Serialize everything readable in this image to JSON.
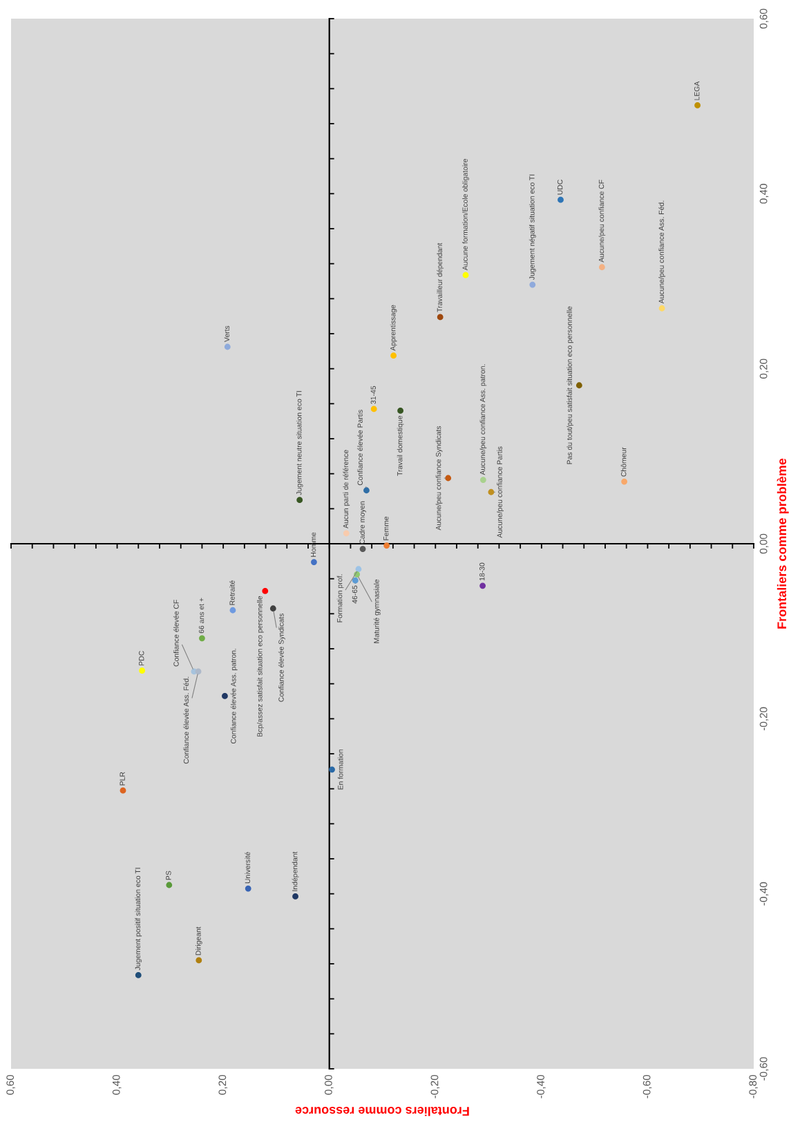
{
  "chart_data": {
    "type": "scatter",
    "xlabel": "Frontaliers comme ressource",
    "ylabel": "Frontaliers comme problème",
    "marker": "circle",
    "xlim": [
      0.6,
      -0.8
    ],
    "ylim": [
      -0.6,
      0.6
    ],
    "xticks": [
      {
        "value": 0.6,
        "label": "0,60"
      },
      {
        "value": 0.56,
        "label": null
      },
      {
        "value": 0.52,
        "label": null
      },
      {
        "value": 0.48,
        "label": null
      },
      {
        "value": 0.44,
        "label": null
      },
      {
        "value": 0.4,
        "label": "0,40"
      },
      {
        "value": 0.36,
        "label": null
      },
      {
        "value": 0.32,
        "label": null
      },
      {
        "value": 0.28,
        "label": null
      },
      {
        "value": 0.24,
        "label": null
      },
      {
        "value": 0.2,
        "label": "0,20"
      },
      {
        "value": 0.16,
        "label": null
      },
      {
        "value": 0.12,
        "label": null
      },
      {
        "value": 0.08,
        "label": null
      },
      {
        "value": 0.04,
        "label": null
      },
      {
        "value": 0,
        "label": "0,00"
      },
      {
        "value": -0.04,
        "label": null
      },
      {
        "value": -0.08,
        "label": null
      },
      {
        "value": -0.12,
        "label": null
      },
      {
        "value": -0.16,
        "label": null
      },
      {
        "value": -0.2,
        "label": "-0,20"
      },
      {
        "value": -0.24,
        "label": null
      },
      {
        "value": -0.28,
        "label": null
      },
      {
        "value": -0.32,
        "label": null
      },
      {
        "value": -0.36,
        "label": null
      },
      {
        "value": -0.4,
        "label": "-0,40"
      },
      {
        "value": -0.44,
        "label": null
      },
      {
        "value": -0.48,
        "label": null
      },
      {
        "value": -0.52,
        "label": null
      },
      {
        "value": -0.56,
        "label": null
      },
      {
        "value": -0.6,
        "label": "-0,60"
      },
      {
        "value": -0.64,
        "label": null
      },
      {
        "value": -0.68,
        "label": null
      },
      {
        "value": -0.72,
        "label": null
      },
      {
        "value": -0.76,
        "label": null
      },
      {
        "value": -0.8,
        "label": "-0,80"
      }
    ],
    "yticks": [
      {
        "value": 0.6,
        "label": "0,60"
      },
      {
        "value": 0.56,
        "label": null
      },
      {
        "value": 0.52,
        "label": null
      },
      {
        "value": 0.48,
        "label": null
      },
      {
        "value": 0.44,
        "label": null
      },
      {
        "value": 0.4,
        "label": "0,40"
      },
      {
        "value": 0.36,
        "label": null
      },
      {
        "value": 0.32,
        "label": null
      },
      {
        "value": 0.28,
        "label": null
      },
      {
        "value": 0.24,
        "label": null
      },
      {
        "value": 0.2,
        "label": "0,20"
      },
      {
        "value": 0.16,
        "label": null
      },
      {
        "value": 0.12,
        "label": null
      },
      {
        "value": 0.08,
        "label": null
      },
      {
        "value": 0.04,
        "label": null
      },
      {
        "value": 0,
        "label": "0,00"
      },
      {
        "value": -0.04,
        "label": null
      },
      {
        "value": -0.08,
        "label": null
      },
      {
        "value": -0.12,
        "label": null
      },
      {
        "value": -0.16,
        "label": null
      },
      {
        "value": -0.2,
        "label": "-0,20"
      },
      {
        "value": -0.24,
        "label": null
      },
      {
        "value": -0.28,
        "label": null
      },
      {
        "value": -0.32,
        "label": null
      },
      {
        "value": -0.36,
        "label": null
      },
      {
        "value": -0.4,
        "label": "-0,40"
      },
      {
        "value": -0.44,
        "label": null
      },
      {
        "value": -0.48,
        "label": null
      },
      {
        "value": -0.52,
        "label": null
      },
      {
        "value": -0.56,
        "label": null
      },
      {
        "value": -0.6,
        "label": "-0,60"
      }
    ],
    "series": [
      {
        "name": "Verts",
        "color": "#8eaadb",
        "x": [
          0.192
        ],
        "values": [
          0.225
        ]
      },
      {
        "name": "Apprentissage",
        "color": "#ffc000",
        "x": [
          -0.121
        ],
        "values": [
          0.215
        ]
      },
      {
        "name": "Travail domestique",
        "color": "#375623",
        "x": [
          -0.134
        ],
        "values": [
          0.152
        ]
      },
      {
        "name": "Travailleur dépendant",
        "color": "#9e480e",
        "x": [
          -0.209
        ],
        "values": [
          0.259
        ]
      },
      {
        "name": "Aucune formation/Ecole obligatoire",
        "color": "#ffff00",
        "x": [
          -0.257
        ],
        "values": [
          0.307
        ]
      },
      {
        "name": "Jugement négatif situation eco TI",
        "color": "#8faadc",
        "x": [
          -0.383
        ],
        "values": [
          0.296
        ]
      },
      {
        "name": "UDC",
        "color": "#2e75b6",
        "x": [
          -0.436
        ],
        "values": [
          0.393
        ]
      },
      {
        "name": "Aucune/peu confiance CF",
        "color": "#f4b183",
        "x": [
          -0.514
        ],
        "values": [
          0.316
        ]
      },
      {
        "name": "Aucune/peu confiance Ass. Féd.",
        "color": "#ffd966",
        "x": [
          -0.627
        ],
        "values": [
          0.269
        ]
      },
      {
        "name": "LEGA",
        "color": "#bf9000",
        "x": [
          -0.694
        ],
        "values": [
          0.501
        ]
      },
      {
        "name": "Pas du tout/peu satisfait situation eco personnelle",
        "color": "#7f6000",
        "x": [
          -0.471
        ],
        "values": [
          0.181
        ]
      },
      {
        "name": "Aucune/peu confiance Syndicats",
        "color": "#c55a11",
        "x": [
          -0.224
        ],
        "values": [
          0.075
        ]
      },
      {
        "name": "Aucune/peu confiance Ass. patron.",
        "color": "#a9d18e",
        "x": [
          -0.29
        ],
        "values": [
          0.073
        ]
      },
      {
        "name": "Aucune/peu confiance Partis",
        "color": "#c09020",
        "x": [
          -0.305
        ],
        "values": [
          0.059
        ]
      },
      {
        "name": "Chômeur",
        "color": "#f8a86a",
        "x": [
          -0.556
        ],
        "values": [
          0.071
        ]
      },
      {
        "name": "18-30",
        "color": "#7030a0",
        "x": [
          -0.289
        ],
        "values": [
          -0.048
        ]
      },
      {
        "name": "Jugement neutre situation eco TI",
        "color": "#385723",
        "x": [
          0.056
        ],
        "values": [
          0.05
        ]
      },
      {
        "name": "31-45",
        "color": "#ffc000",
        "x": [
          -0.084
        ],
        "values": [
          0.154
        ]
      },
      {
        "name": "Confiance élevée Partis",
        "color": "#2f6ea6",
        "x": [
          -0.07
        ],
        "values": [
          0.061
        ]
      },
      {
        "name": "Aucun parti de référence",
        "color": "#f8cbad",
        "x": [
          -0.032
        ],
        "values": [
          0.012
        ]
      },
      {
        "name": "Femme",
        "color": "#ed7d31",
        "x": [
          -0.108
        ],
        "values": [
          -0.002
        ]
      },
      {
        "name": "Cadre moyen",
        "color": "#595959",
        "x": [
          -0.063
        ],
        "values": [
          -0.006
        ]
      },
      {
        "name": "Homme",
        "color": "#4472c4",
        "x": [
          0.029
        ],
        "values": [
          -0.021
        ]
      },
      {
        "name": "Formation prof.",
        "color": "#9dc3e6",
        "x": [
          -0.055
        ],
        "values": [
          -0.029
        ]
      },
      {
        "name": "Maturité gymnasiale",
        "color": "#8fca6f",
        "x": [
          -0.052
        ],
        "values": [
          -0.035
        ]
      },
      {
        "name": "46-65",
        "color": "#5b9bd5",
        "x": [
          -0.049
        ],
        "values": [
          -0.042
        ]
      },
      {
        "name": "Bcp/assez satisfait situation eco personnelle",
        "color": "#ff0000",
        "x": [
          0.121
        ],
        "values": [
          -0.054
        ]
      },
      {
        "name": "Confiance élevée Syndicats",
        "color": "#404040",
        "x": [
          0.106
        ],
        "values": [
          -0.074
        ]
      },
      {
        "name": "Retraité",
        "color": "#6f9ae0",
        "x": [
          0.182
        ],
        "values": [
          -0.076
        ]
      },
      {
        "name": "66 ans et +",
        "color": "#70ad47",
        "x": [
          0.24
        ],
        "values": [
          -0.108
        ]
      },
      {
        "name": "Confiance élevée CF",
        "color": "#a6c3dd",
        "x": [
          0.255
        ],
        "values": [
          -0.146
        ]
      },
      {
        "name": "Confiance élevée Ass. Féd.",
        "color": "#adb9ca",
        "x": [
          0.247
        ],
        "values": [
          -0.146
        ]
      },
      {
        "name": "PDC",
        "color": "#ffff00",
        "x": [
          0.353
        ],
        "values": [
          -0.145
        ]
      },
      {
        "name": "Confiance élevée Ass. patron.",
        "color": "#203864",
        "x": [
          0.197
        ],
        "values": [
          -0.174
        ]
      },
      {
        "name": "PLR",
        "color": "#dd6420",
        "x": [
          0.389
        ],
        "values": [
          -0.282
        ]
      },
      {
        "name": "En formation",
        "color": "#2a69a6",
        "x": [
          -0.005
        ],
        "values": [
          -0.258
        ]
      },
      {
        "name": "PS",
        "color": "#5a9a3a",
        "x": [
          0.302
        ],
        "values": [
          -0.39
        ]
      },
      {
        "name": "Université",
        "color": "#3864b4",
        "x": [
          0.153
        ],
        "values": [
          -0.394
        ]
      },
      {
        "name": "Indépendant",
        "color": "#1f3864",
        "x": [
          0.064
        ],
        "values": [
          -0.403
        ]
      },
      {
        "name": "Dirigeant",
        "color": "#b08010",
        "x": [
          0.246
        ],
        "values": [
          -0.476
        ]
      },
      {
        "name": "Jugement positif situation eco TI",
        "color": "#1f4e79",
        "x": [
          0.36
        ],
        "values": [
          -0.493
        ]
      }
    ]
  }
}
